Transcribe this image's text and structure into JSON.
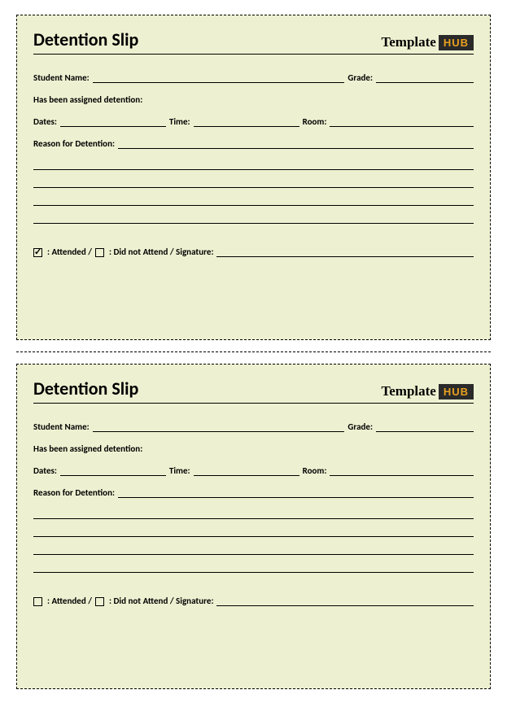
{
  "page": {
    "background": "#ffffff",
    "slip_background": "#eef1d1",
    "border_color": "#000000",
    "text_color": "#000000",
    "title_fontsize": 22,
    "label_fontsize": 11
  },
  "logo": {
    "template_text": "Template",
    "hub_text": "HUB",
    "hub_bg": "#2a2a2a",
    "hub_color": "#e8a020"
  },
  "slips": [
    {
      "title": "Detention Slip",
      "student_name_label": "Student Name:",
      "grade_label": "Grade:",
      "assigned_text": "Has been assigned detention:",
      "dates_label": "Dates:",
      "time_label": "Time:",
      "room_label": "Room:",
      "reason_label": "Reason for Detention:",
      "attended_checked": true,
      "attended_label": ": Attended /",
      "not_attend_checked": false,
      "not_attend_label": ": Did not Attend / Signature:"
    },
    {
      "title": "Detention Slip",
      "student_name_label": "Student Name:",
      "grade_label": "Grade:",
      "assigned_text": "Has been assigned detention:",
      "dates_label": "Dates:",
      "time_label": "Time:",
      "room_label": "Room:",
      "reason_label": "Reason for Detention:",
      "attended_checked": false,
      "attended_label": ": Attended /",
      "not_attend_checked": false,
      "not_attend_label": ": Did not Attend / Signature:"
    }
  ]
}
